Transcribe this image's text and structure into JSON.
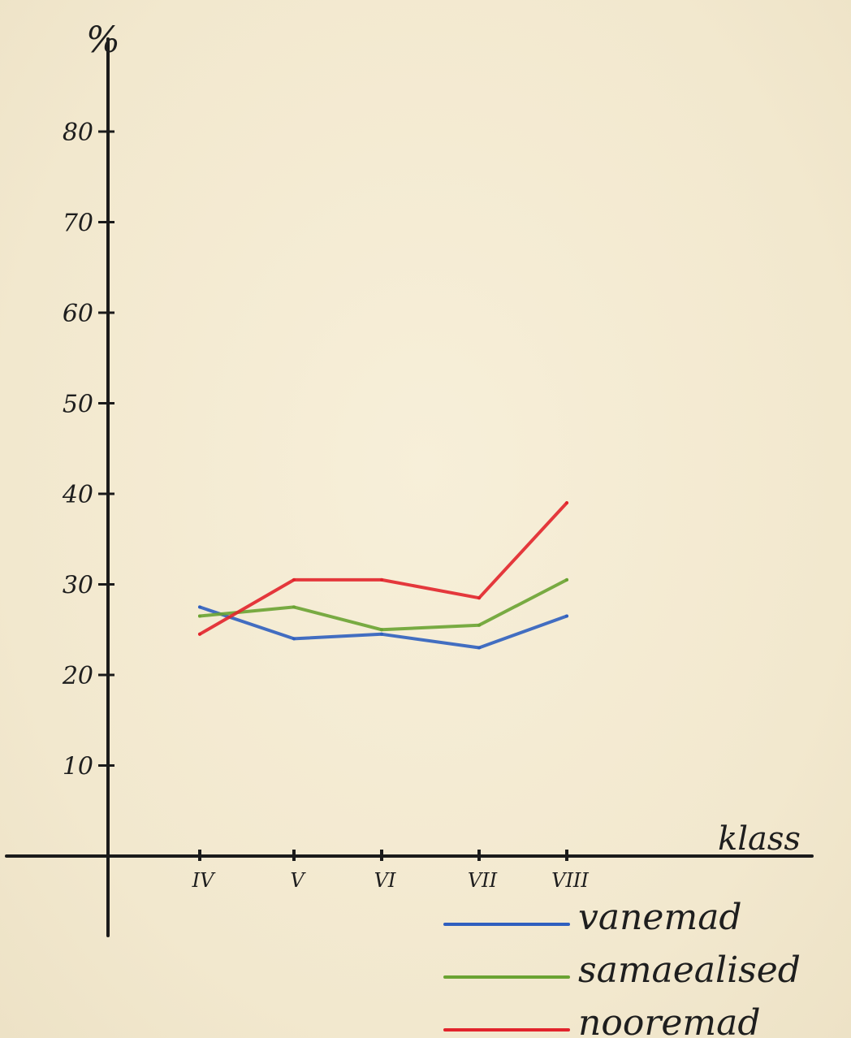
{
  "chart_data": {
    "type": "line",
    "title": "",
    "ylabel": "%",
    "xlabel": "klass",
    "categories": [
      "IV",
      "V",
      "VI",
      "VII",
      "VIII"
    ],
    "y_ticks": [
      "10",
      "20",
      "30",
      "40",
      "50",
      "60",
      "70",
      "80"
    ],
    "ylim": [
      0,
      90
    ],
    "grid": false,
    "legend_position": "bottom-right",
    "series": [
      {
        "name": "vanemad",
        "color": "#2f5fbf",
        "values": [
          27.5,
          24,
          24.5,
          23,
          26.5
        ]
      },
      {
        "name": "samaealised",
        "color": "#6aa332",
        "values": [
          26.5,
          27.5,
          25,
          25.5,
          30.5
        ]
      },
      {
        "name": "nooremad",
        "color": "#e2232b",
        "values": [
          24.5,
          30.5,
          30.5,
          28.5,
          39
        ]
      }
    ]
  }
}
